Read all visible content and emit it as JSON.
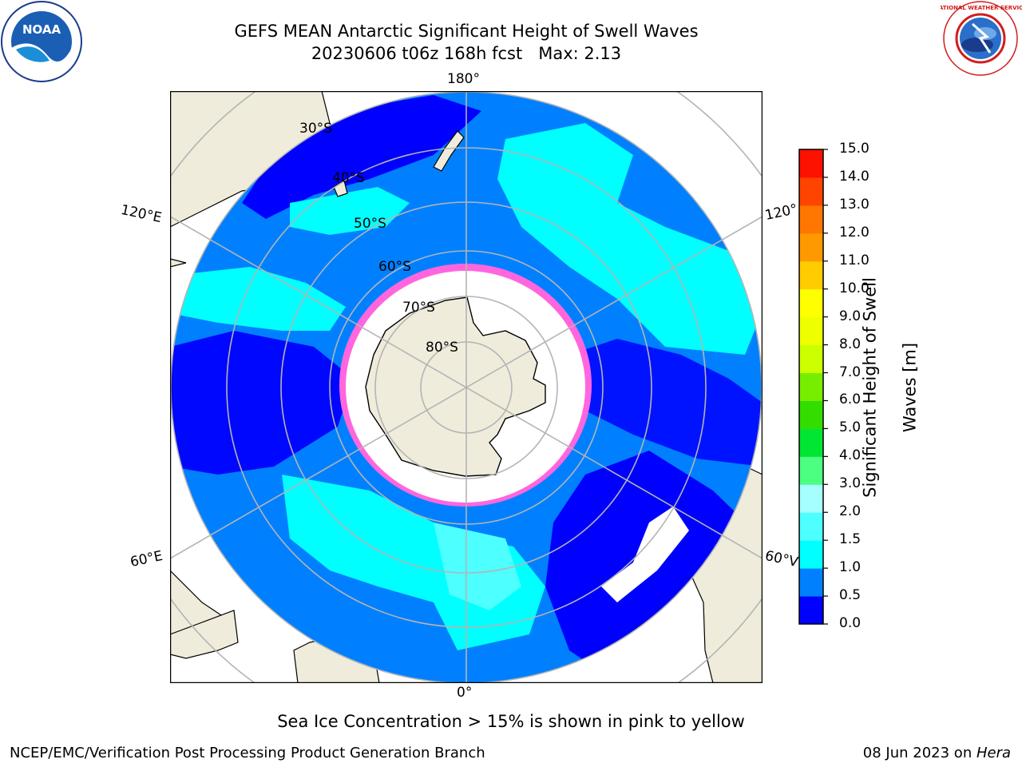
{
  "title": "GEFS MEAN Antarctic Significant Height of Swell Waves",
  "subtitle": "20230606 t06z 168h fcst   Max: 2.13",
  "map": {
    "meridian_labels": {
      "top": "180°",
      "bottom": "0°",
      "upper_left": "120°E",
      "lower_left": "60°E",
      "upper_right": "120°",
      "lower_right": "60°V"
    },
    "latitude_labels": [
      "30°S",
      "40°S",
      "50°S",
      "60°S",
      "70°S",
      "80°S"
    ],
    "colors": {
      "ocean_low": "#0000ff",
      "ocean_mid": "#0080ff",
      "ocean_high": "#00ffff",
      "ocean_higher": "#4dffff",
      "land": "#efecdc",
      "sea_ice": "#ffffff",
      "ice_edge": "#ff66dd",
      "grid": "#b4b4b4"
    }
  },
  "colorbar": {
    "label": "Significant Height of Swell Waves [m]",
    "label_line1": "Significant Height of Swell",
    "label_line2": "Waves [m]",
    "ticks": [
      "0.0",
      "0.5",
      "1.0",
      "1.5",
      "2.0",
      "3.0",
      "4.0",
      "5.0",
      "6.0",
      "7.0",
      "8.0",
      "9.0",
      "10.0",
      "11.0",
      "12.0",
      "13.0",
      "14.0",
      "15.0"
    ],
    "colors": [
      "#0000ff",
      "#0080ff",
      "#00ffff",
      "#4dffff",
      "#a6ffff",
      "#4dff80",
      "#00e633",
      "#33dd00",
      "#77ee00",
      "#ccff00",
      "#eeff00",
      "#ffff00",
      "#ffcc00",
      "#ff9900",
      "#ff7700",
      "#ff4400",
      "#ff1100"
    ]
  },
  "footnote": "Sea Ice Concentration > 15% is shown in pink to yellow",
  "credit": "NCEP/EMC/Verification Post Processing Product Generation Branch",
  "date_text": "08 Jun 2023 on ",
  "date_machine": "Hera",
  "logos": {
    "noaa": "NOAA",
    "nws": "NATIONAL WEATHER SERVICE"
  }
}
